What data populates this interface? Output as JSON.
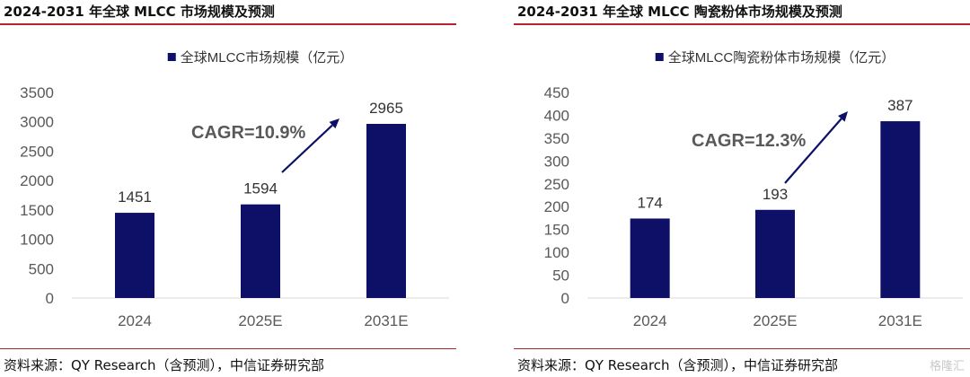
{
  "panels": [
    {
      "title": "2024-2031 年全球 MLCC 市场规模及预测",
      "source": "资料来源：QY Research（含预测），中信证券研究部"
    },
    {
      "title": "2024-2031 年全球 MLCC 陶瓷粉体市场规模及预测",
      "source": "资料来源：QY Research（含预测），中信证券研究部"
    }
  ],
  "colors": {
    "bar": "#0d1066",
    "rule": "#b0262c",
    "axis": "#d9d9d9",
    "text": "#595959"
  },
  "watermark": "格隆汇",
  "chart_data": [
    {
      "type": "bar",
      "categories": [
        "2024",
        "2025E",
        "2031E"
      ],
      "series": [
        {
          "name": "全球MLCC市场规模（亿元）",
          "values": [
            1451,
            1594,
            2965
          ]
        }
      ],
      "ylim": [
        0,
        3500
      ],
      "yticks": [
        0,
        500,
        1000,
        1500,
        2000,
        2500,
        3000,
        3500
      ],
      "legend_position": "top-center",
      "grid": false,
      "annotation": "CAGR=10.9%"
    },
    {
      "type": "bar",
      "categories": [
        "2024",
        "2025E",
        "2031E"
      ],
      "series": [
        {
          "name": "全球MLCC陶瓷粉体市场规模（亿元）",
          "values": [
            174,
            193,
            387
          ]
        }
      ],
      "ylim": [
        0,
        450
      ],
      "yticks": [
        0,
        50,
        100,
        150,
        200,
        250,
        300,
        350,
        400,
        450
      ],
      "legend_position": "top-center",
      "grid": false,
      "annotation": "CAGR=12.3%"
    }
  ]
}
